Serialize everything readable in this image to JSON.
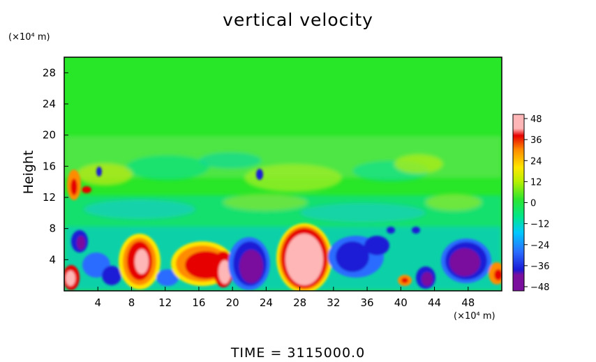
{
  "chart_data": {
    "type": "heatmap",
    "title": "vertical velocity",
    "ylabel": "Height",
    "x_unit": "(×10⁴ m)",
    "y_unit": "(×10⁴ m)",
    "x_ticks": [
      "4",
      "8",
      "12",
      "16",
      "20",
      "24",
      "28",
      "32",
      "36",
      "40",
      "44",
      "48"
    ],
    "y_ticks": [
      "4",
      "8",
      "12",
      "16",
      "20",
      "24",
      "28"
    ],
    "xlim": [
      0,
      52
    ],
    "ylim": [
      0,
      30
    ],
    "colorbar_ticks": [
      "48",
      "36",
      "24",
      "12",
      "0",
      "−12",
      "−24",
      "−36",
      "−48"
    ],
    "colorbar_range": [
      -48,
      48
    ],
    "colormap": [
      "#7a0f9e",
      "#1a1ad6",
      "#2a6cff",
      "#00c8ff",
      "#00e68a",
      "#2ee62e",
      "#b8f000",
      "#ffe600",
      "#ff8c00",
      "#e60000",
      "#ffb6b6"
    ],
    "footer": "TIME = 3115000.0"
  }
}
